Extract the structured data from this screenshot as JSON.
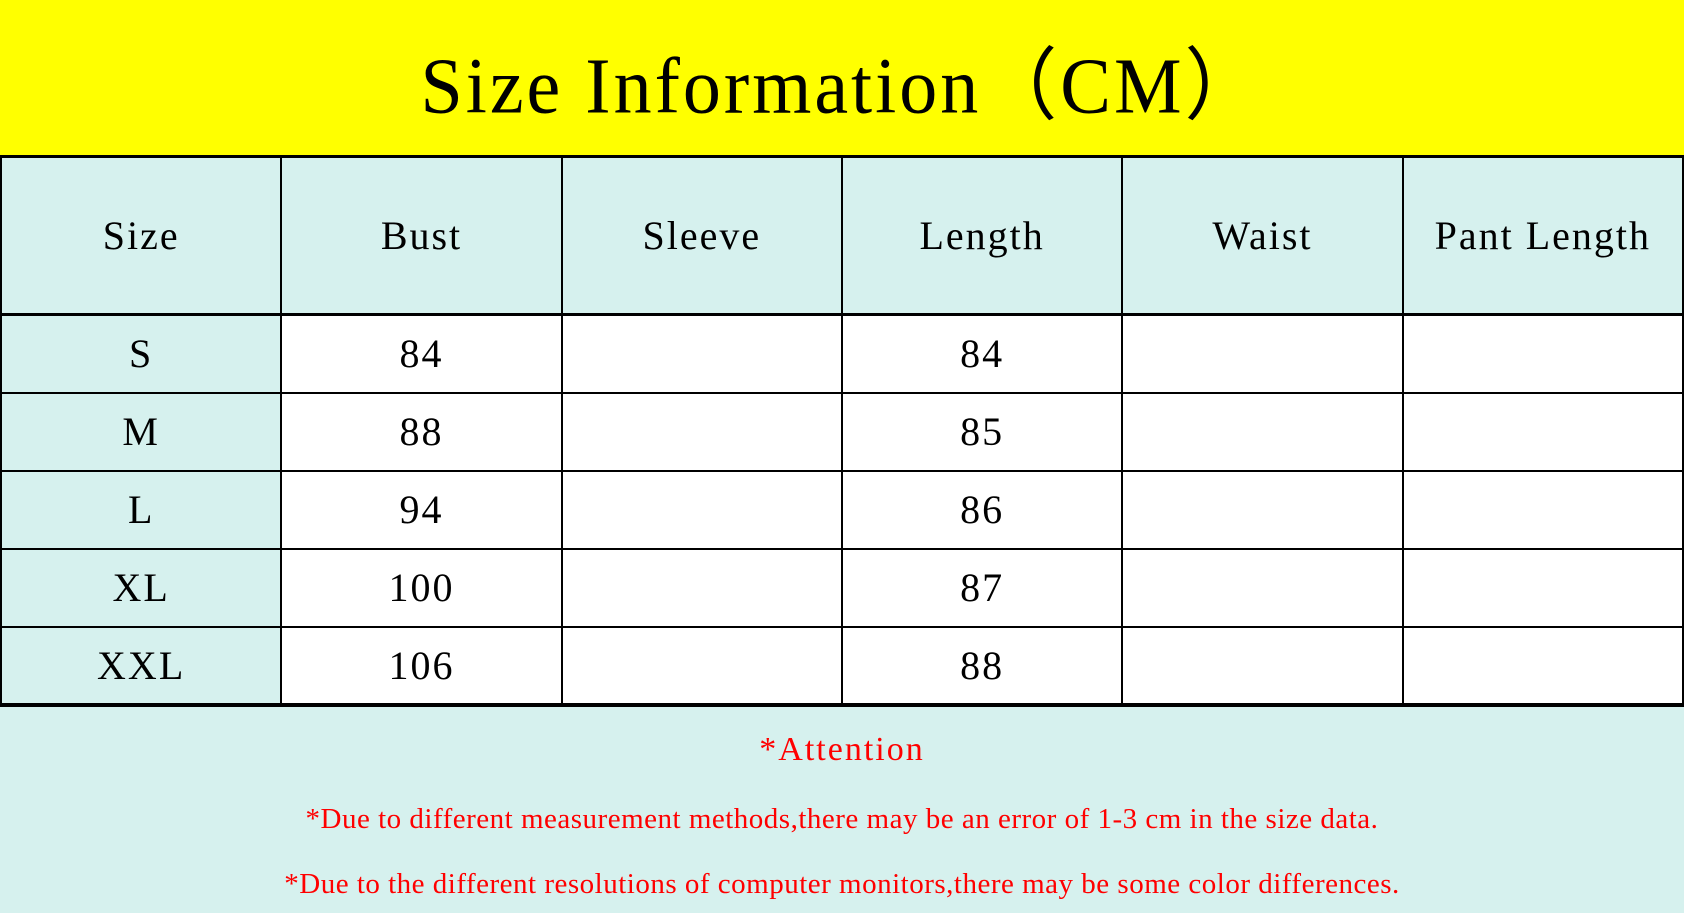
{
  "banner": {
    "title": "Size Information（CM）",
    "background": "#ffff00"
  },
  "table": {
    "columns": [
      "Size",
      "Bust",
      "Sleeve",
      "Length",
      "Waist",
      "Pant Length"
    ],
    "rows": [
      [
        "S",
        "84",
        "",
        "84",
        "",
        ""
      ],
      [
        "M",
        "88",
        "",
        "85",
        "",
        ""
      ],
      [
        "L",
        "94",
        "",
        "86",
        "",
        ""
      ],
      [
        "XL",
        "100",
        "",
        "87",
        "",
        ""
      ],
      [
        "XXL",
        "106",
        "",
        "88",
        "",
        ""
      ]
    ],
    "header_background": "#d6f1ee",
    "size_column_background": "#d6f1ee",
    "border_color": "#000000"
  },
  "attention": {
    "heading": "*Attention",
    "notes": [
      "*Due to different measurement methods,there may be an error of 1-3 cm in the size data.",
      "*Due to the different resolutions of computer monitors,there may be some color differences."
    ],
    "text_color": "#ff0000",
    "background": "#d6f1ee"
  }
}
